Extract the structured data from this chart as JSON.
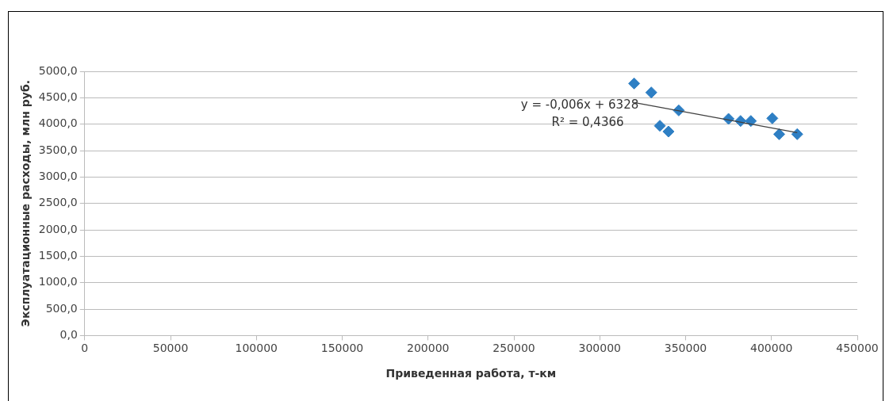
{
  "chart_data": {
    "type": "scatter",
    "xlabel": "Приведенная работа, т-км",
    "ylabel": "Эксплуатационные расходы, млн руб.",
    "xlim": [
      0,
      450000
    ],
    "xticks": [
      0,
      50000,
      100000,
      150000,
      200000,
      250000,
      300000,
      350000,
      400000,
      450000
    ],
    "ylim": [
      0,
      5000
    ],
    "yticks": [
      {
        "value": 0,
        "label": "0,0"
      },
      {
        "value": 500,
        "label": "500,0"
      },
      {
        "value": 1000,
        "label": "1000,0"
      },
      {
        "value": 1500,
        "label": "1500,0"
      },
      {
        "value": 2000,
        "label": "2000,0"
      },
      {
        "value": 2500,
        "label": "2500,0"
      },
      {
        "value": 3000,
        "label": "3000,0"
      },
      {
        "value": 3500,
        "label": "3500,0"
      },
      {
        "value": 4000,
        "label": "4000,0"
      },
      {
        "value": 4500,
        "label": "4500,0"
      },
      {
        "value": 5000,
        "label": "5000,0"
      }
    ],
    "grid": "y",
    "legend": false,
    "series": [
      {
        "marker": "diamond",
        "color": "#2e7fc4",
        "x": [
          320000,
          330000,
          346000,
          335000,
          340000,
          375000,
          382000,
          388000,
          400500,
          404500,
          415000
        ],
        "values": [
          4770,
          4600,
          4260,
          3970,
          3860,
          4100,
          4060,
          4060,
          4110,
          3810,
          3810
        ]
      },
      {
        "type": "line",
        "marker": "none",
        "color": "#404040",
        "x": [
          320000,
          415000
        ],
        "values": [
          4410,
          3840
        ]
      }
    ],
    "annotations": [
      "y = -0,006x + 6328",
      "R² = 0,4366"
    ]
  }
}
